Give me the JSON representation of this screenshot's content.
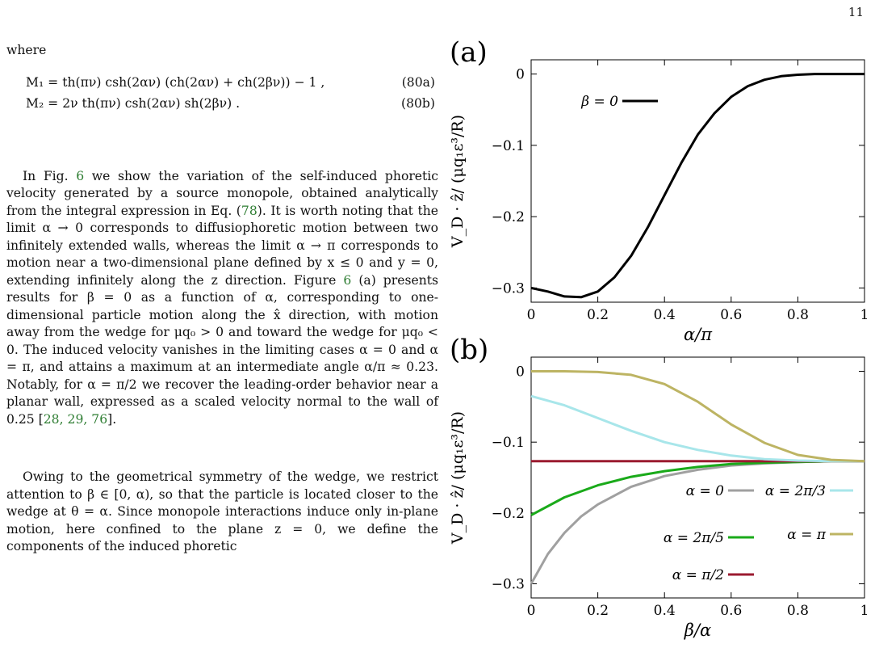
{
  "page_number": "11",
  "text": {
    "where": "where",
    "eq80a": "M₁ = th(πν) csh(2αν) (ch(2αν) + ch(2βν)) − 1 ,",
    "eq80a_tag": "(80a)",
    "eq80b": "M₂ = 2ν th(πν) csh(2αν) sh(2βν) .",
    "eq80b_tag": "(80b)",
    "para1_a": "In Fig. ",
    "para1_fig": "6",
    "para1_b": " we show the variation of the self-induced phoretic velocity generated by a source monopole, obtained analytically from the integral expression in Eq. (",
    "para1_eq": "78",
    "para1_c": "). It is worth noting that the limit α → 0 corresponds to diffusiophoretic motion between two infinitely extended walls, whereas the limit α → π corresponds to motion near a two-dimensional plane defined by x ≤ 0 and y = 0, extending infinitely along the z direction. Figure ",
    "para1_fig2": "6",
    "para1_d": " (a) presents results for β = 0 as a function of α, corresponding to one-dimensional particle motion along the x̂ direction, with motion away from the wedge for μq₀ > 0 and toward the wedge for μq₀ < 0. The induced velocity vanishes in the limiting cases α = 0 and α = π, and attains a maximum at an intermediate angle α/π ≈ 0.23. Notably, for α = π/2 we recover the leading-order behavior near a planar wall, expressed as a scaled velocity normal to the wall of 0.25 [",
    "para1_refs": "28, 29, 76",
    "para1_e": "].",
    "para2": "Owing to the geometrical symmetry of the wedge, we restrict attention to β ∈ [0, α), so that the particle is located closer to the wedge at θ = α. Since monopole interactions induce only in-plane motion, here confined to the plane z = 0, we define the components of the induced phoretic"
  },
  "chart_data": [
    {
      "type": "line",
      "panel_label": "(a)",
      "xlabel": "α/π",
      "ylabel": "V_D · ẑ/ (μq₁ε³/R)",
      "xlim": [
        0,
        1
      ],
      "ylim": [
        -0.32,
        0.02
      ],
      "xticks": [
        "0",
        "0.2",
        "0.4",
        "0.6",
        "0.8",
        "1"
      ],
      "yticks": [
        "0",
        "−0.1",
        "−0.2",
        "−0.3"
      ],
      "legend_position": "top-left",
      "series": [
        {
          "name": "β = 0",
          "color": "#000000",
          "x": [
            0,
            0.05,
            0.1,
            0.15,
            0.2,
            0.25,
            0.3,
            0.35,
            0.4,
            0.45,
            0.5,
            0.55,
            0.6,
            0.65,
            0.7,
            0.75,
            0.8,
            0.85,
            0.9,
            0.95,
            1.0
          ],
          "y": [
            -0.3,
            -0.305,
            -0.312,
            -0.313,
            -0.305,
            -0.285,
            -0.255,
            -0.215,
            -0.17,
            -0.125,
            -0.085,
            -0.055,
            -0.032,
            -0.017,
            -0.008,
            -0.003,
            -0.001,
            0,
            0,
            0,
            0
          ]
        }
      ]
    },
    {
      "type": "line",
      "panel_label": "(b)",
      "xlabel": "β/α",
      "ylabel": "V_D · ẑ/ (μq₁ε³/R)",
      "xlim": [
        0,
        1
      ],
      "ylim": [
        -0.32,
        0.02
      ],
      "xticks": [
        "0",
        "0.2",
        "0.4",
        "0.6",
        "0.8",
        "1"
      ],
      "yticks": [
        "0",
        "−0.1",
        "−0.2",
        "−0.3"
      ],
      "legend_position": "bottom-right",
      "series": [
        {
          "name": "α = 0",
          "color": "#a0a0a0",
          "x": [
            0,
            0.05,
            0.1,
            0.15,
            0.2,
            0.3,
            0.4,
            0.5,
            0.6,
            0.7,
            0.8,
            0.9,
            1.0
          ],
          "y": [
            -0.3,
            -0.258,
            -0.228,
            -0.205,
            -0.188,
            -0.163,
            -0.148,
            -0.139,
            -0.133,
            -0.13,
            -0.128,
            -0.127,
            -0.127
          ]
        },
        {
          "name": "α = 2π/5",
          "color": "#1aaa1a",
          "x": [
            0,
            0.1,
            0.2,
            0.3,
            0.4,
            0.5,
            0.6,
            0.7,
            0.8,
            0.9,
            1.0
          ],
          "y": [
            -0.203,
            -0.178,
            -0.161,
            -0.149,
            -0.141,
            -0.135,
            -0.131,
            -0.129,
            -0.128,
            -0.127,
            -0.127
          ]
        },
        {
          "name": "α = π/2",
          "color": "#9b1b30",
          "x": [
            0,
            1
          ],
          "y": [
            -0.127,
            -0.127
          ]
        },
        {
          "name": "α = 2π/3",
          "color": "#a8e6ea",
          "x": [
            0,
            0.1,
            0.2,
            0.3,
            0.4,
            0.5,
            0.6,
            0.7,
            0.8,
            0.9,
            1.0
          ],
          "y": [
            -0.035,
            -0.048,
            -0.066,
            -0.084,
            -0.1,
            -0.111,
            -0.119,
            -0.124,
            -0.126,
            -0.127,
            -0.127
          ]
        },
        {
          "name": "α = π",
          "color": "#bdb463",
          "x": [
            0,
            0.1,
            0.2,
            0.3,
            0.4,
            0.5,
            0.6,
            0.7,
            0.8,
            0.9,
            1.0
          ],
          "y": [
            0,
            0,
            -0.001,
            -0.005,
            -0.018,
            -0.043,
            -0.075,
            -0.101,
            -0.118,
            -0.125,
            -0.127
          ]
        }
      ]
    }
  ]
}
